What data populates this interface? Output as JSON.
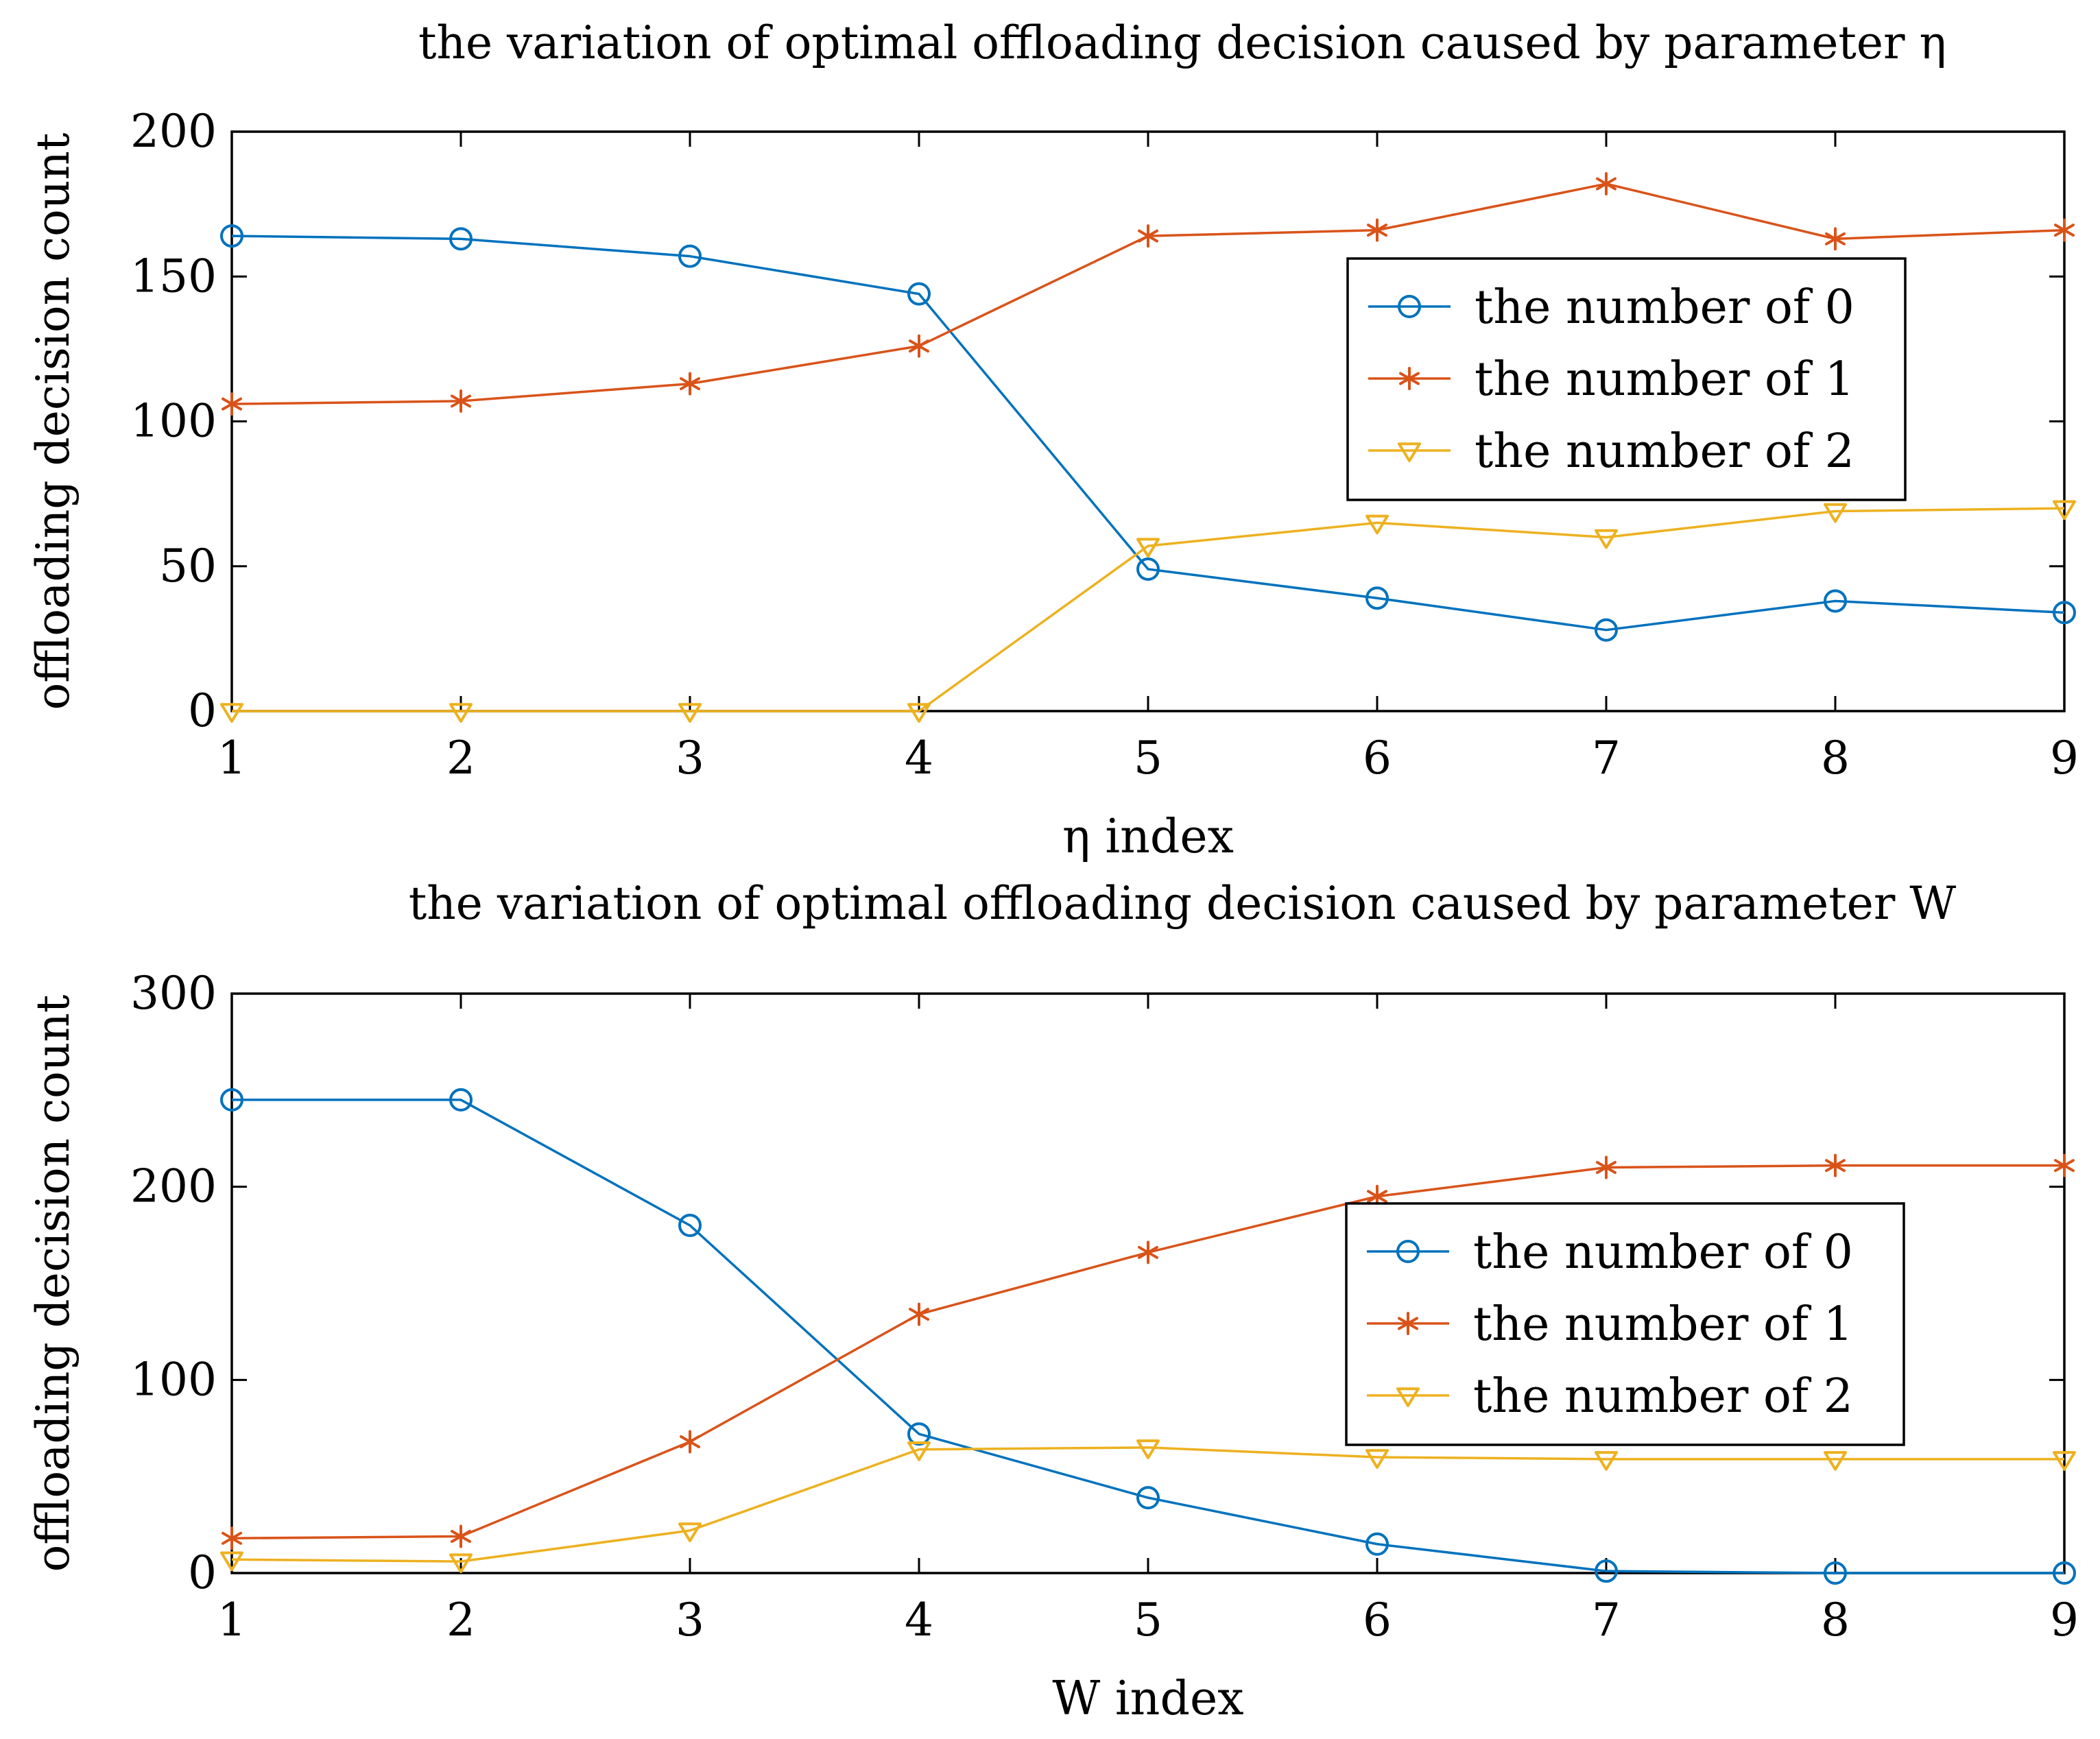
{
  "colors": {
    "series0": "#0072BD",
    "series1": "#D95319",
    "series2": "#EDB120",
    "axis": "#000000"
  },
  "chart_data": [
    {
      "type": "line",
      "title": "the variation of optimal offloading decision caused by parameter η",
      "xlabel": "η index",
      "ylabel": "offloading decision count",
      "x": [
        1,
        2,
        3,
        4,
        5,
        6,
        7,
        8,
        9
      ],
      "xlim": [
        1,
        9
      ],
      "ylim": [
        0,
        200
      ],
      "xticks": [
        1,
        2,
        3,
        4,
        5,
        6,
        7,
        8,
        9
      ],
      "yticks": [
        0,
        50,
        100,
        150,
        200
      ],
      "grid": false,
      "legend_position": "upper-right",
      "series": [
        {
          "name": "the number of 0",
          "marker": "circle",
          "color": "#0072BD",
          "values": [
            164,
            163,
            157,
            144,
            49,
            39,
            28,
            38,
            34
          ]
        },
        {
          "name": "the number of 1",
          "marker": "asterisk",
          "color": "#D95319",
          "values": [
            106,
            107,
            113,
            126,
            164,
            166,
            182,
            163,
            166
          ]
        },
        {
          "name": "the number of 2",
          "marker": "triangle-down",
          "color": "#EDB120",
          "values": [
            0,
            0,
            0,
            0,
            57,
            65,
            60,
            69,
            70
          ]
        }
      ]
    },
    {
      "type": "line",
      "title": "the variation of optimal offloading decision caused by parameter W",
      "xlabel": "W index",
      "ylabel": "offloading decision count",
      "x": [
        1,
        2,
        3,
        4,
        5,
        6,
        7,
        8,
        9
      ],
      "xlim": [
        1,
        9
      ],
      "ylim": [
        0,
        300
      ],
      "xticks": [
        1,
        2,
        3,
        4,
        5,
        6,
        7,
        8,
        9
      ],
      "yticks": [
        0,
        100,
        200,
        300
      ],
      "grid": false,
      "legend_position": "right",
      "series": [
        {
          "name": "the number of 0",
          "marker": "circle",
          "color": "#0072BD",
          "values": [
            245,
            245,
            180,
            72,
            39,
            15,
            1,
            0,
            0
          ]
        },
        {
          "name": "the number of 1",
          "marker": "asterisk",
          "color": "#D95319",
          "values": [
            18,
            19,
            68,
            134,
            166,
            195,
            210,
            211,
            211
          ]
        },
        {
          "name": "the number of 2",
          "marker": "triangle-down",
          "color": "#EDB120",
          "values": [
            7,
            6,
            22,
            64,
            65,
            60,
            59,
            59,
            59
          ]
        }
      ]
    }
  ]
}
